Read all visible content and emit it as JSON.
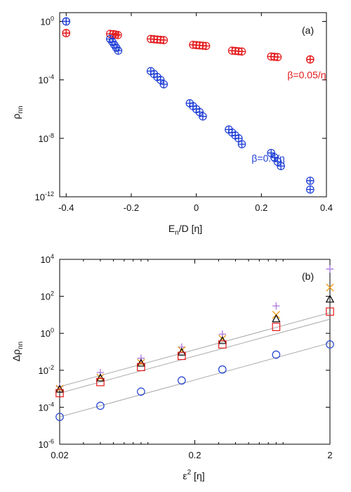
{
  "colors": {
    "red": "#e41a1c",
    "blue": "#1f3fd6",
    "purple": "#b07fe0",
    "orange": "#f0a020",
    "black": "#000000",
    "gray": "#aaaaaa"
  },
  "chart_data": [
    {
      "id": "a",
      "type": "scatter",
      "panel_label": "(a)",
      "xlabel_main": "E",
      "xlabel_sub": "n",
      "xlabel_rest": "/D [η]",
      "ylabel_main": "ρ",
      "ylabel_sub": "nn",
      "xlim": [
        -0.42,
        0.4
      ],
      "ylog": true,
      "ylim_exp": [
        -12,
        0.6
      ],
      "xticks": [
        -0.4,
        -0.2,
        0,
        0.2,
        0.4
      ],
      "xtick_labels": [
        "-0.4",
        "-0.2",
        "0",
        "0.2",
        "0.4"
      ],
      "yticks_exp": [
        0,
        -4,
        -8,
        -12
      ],
      "ytick_bases": [
        "10",
        "10",
        "10",
        "10"
      ],
      "ytick_exps": [
        "0",
        "-4",
        "-8",
        "-12"
      ],
      "annotations": [
        {
          "text": "β=0.05/η",
          "color": "red",
          "x": 0.28,
          "y_exp": -3.9
        },
        {
          "text": "β=0.5/η",
          "color": "blue",
          "x": 0.17,
          "y_exp": -9.6
        }
      ],
      "series": [
        {
          "color": "red",
          "markers": [
            "circle",
            "plus"
          ],
          "groups": [
            {
              "x": [
                -0.4,
                -0.4
              ],
              "y_exp": [
                -0.8,
                -0.8
              ]
            },
            {
              "x": [
                -0.265,
                -0.255,
                -0.248,
                -0.241
              ],
              "y_exp": [
                -0.85,
                -0.87,
                -0.9,
                -0.93
              ]
            },
            {
              "x": [
                -0.14,
                -0.13,
                -0.12,
                -0.11,
                -0.1
              ],
              "y_exp": [
                -1.2,
                -1.22,
                -1.24,
                -1.26,
                -1.28
              ]
            },
            {
              "x": [
                -0.01,
                0.0,
                0.01,
                0.02,
                0.03
              ],
              "y_exp": [
                -1.6,
                -1.62,
                -1.64,
                -1.66,
                -1.68
              ]
            },
            {
              "x": [
                0.11,
                0.12,
                0.13,
                0.14
              ],
              "y_exp": [
                -2.0,
                -2.02,
                -2.04,
                -2.06
              ]
            },
            {
              "x": [
                0.23,
                0.24,
                0.25
              ],
              "y_exp": [
                -2.4,
                -2.42,
                -2.44
              ]
            },
            {
              "x": [
                0.35,
                0.35
              ],
              "y_exp": [
                -2.6,
                -2.6
              ]
            }
          ]
        },
        {
          "color": "blue",
          "markers": [
            "circle",
            "plus"
          ],
          "groups": [
            {
              "x": [
                -0.4,
                -0.4
              ],
              "y_exp": [
                0.0,
                0.0
              ]
            },
            {
              "x": [
                -0.265,
                -0.258,
                -0.252,
                -0.246,
                -0.24
              ],
              "y_exp": [
                -1.2,
                -1.4,
                -1.6,
                -1.8,
                -2.0
              ]
            },
            {
              "x": [
                -0.14,
                -0.13,
                -0.12,
                -0.11,
                -0.1
              ],
              "y_exp": [
                -3.4,
                -3.6,
                -3.8,
                -4.0,
                -4.3
              ]
            },
            {
              "x": [
                -0.02,
                -0.01,
                0.0,
                0.01,
                0.02
              ],
              "y_exp": [
                -5.6,
                -5.8,
                -6.0,
                -6.2,
                -6.5
              ]
            },
            {
              "x": [
                0.1,
                0.11,
                0.12,
                0.13,
                0.14
              ],
              "y_exp": [
                -7.4,
                -7.6,
                -7.8,
                -8.0,
                -8.4
              ]
            },
            {
              "x": [
                0.23,
                0.24,
                0.25,
                0.26
              ],
              "y_exp": [
                -9.0,
                -9.3,
                -9.6,
                -9.9
              ]
            },
            {
              "x": [
                0.35,
                0.35
              ],
              "y_exp": [
                -10.9,
                -11.5
              ]
            }
          ]
        }
      ]
    },
    {
      "id": "b",
      "type": "scatter",
      "panel_label": "(b)",
      "xlabel_main": "ε",
      "xlabel_sup": "2",
      "xlabel_rest": " [η]",
      "ylabel_main": "Δρ",
      "ylabel_sub": "nn",
      "xlog": true,
      "ylog": true,
      "xlim": [
        0.02,
        2
      ],
      "ylim_exp": [
        -6,
        4
      ],
      "xticks": [
        0.02,
        0.2,
        2
      ],
      "xtick_labels": [
        "0.02",
        "0.2",
        "2"
      ],
      "yticks_exp": [
        4,
        2,
        0,
        -2,
        -4,
        -6
      ],
      "ytick_bases": [
        "10",
        "10",
        "10",
        "10",
        "10",
        "10"
      ],
      "ytick_exps": [
        "4",
        "2",
        "0",
        "-2",
        "-4",
        "-6"
      ],
      "x": [
        0.02,
        0.04,
        0.08,
        0.16,
        0.32,
        0.8,
        2.0
      ],
      "series": [
        {
          "marker": "plus",
          "color": "purple",
          "values": [
            0.0013,
            0.0075,
            0.045,
            0.18,
            0.9,
            30,
            3000
          ]
        },
        {
          "marker": "x",
          "color": "orange",
          "values": [
            0.001,
            0.004,
            0.025,
            0.12,
            0.5,
            10,
            300
          ]
        },
        {
          "marker": "triangle",
          "color": "black",
          "values": [
            0.00095,
            0.0038,
            0.024,
            0.095,
            0.4,
            6,
            70
          ]
        },
        {
          "marker": "square",
          "color": "red",
          "values": [
            0.00058,
            0.0023,
            0.015,
            0.06,
            0.25,
            2.2,
            15
          ]
        },
        {
          "marker": "circle",
          "color": "blue",
          "values": [
            3e-05,
            0.00012,
            0.0007,
            0.0028,
            0.011,
            0.07,
            0.25
          ]
        }
      ],
      "fit_lines": [
        {
          "from": [
            0.02,
            0.0013
          ],
          "to": [
            2.0,
            13
          ]
        },
        {
          "from": [
            0.02,
            0.00058
          ],
          "to": [
            2.0,
            5.8
          ]
        },
        {
          "from": [
            0.02,
            3e-05
          ],
          "to": [
            2.0,
            0.3
          ]
        }
      ]
    }
  ]
}
